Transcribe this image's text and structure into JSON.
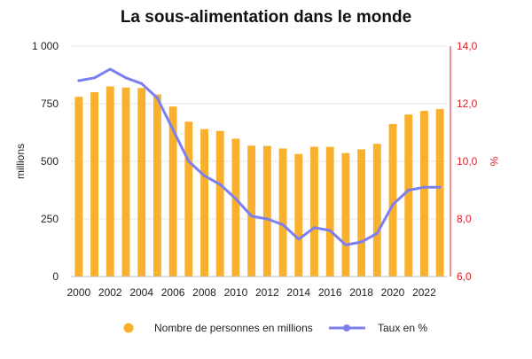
{
  "chart_data": {
    "type": "bar",
    "title": "La sous-alimentation dans le monde",
    "ylabel_left": "millions",
    "ylabel_right": "%",
    "ylim_left": [
      0,
      1000
    ],
    "ylim_right": [
      6,
      14
    ],
    "yticks_left": [
      "0",
      "250",
      "500",
      "750",
      "1 000"
    ],
    "yticks_left_values": [
      0,
      250,
      500,
      750,
      1000
    ],
    "yticks_right": [
      "6,0",
      "8,0",
      "10,0",
      "12,0",
      "14,0"
    ],
    "yticks_right_values": [
      6,
      8,
      10,
      12,
      14
    ],
    "x_tick_labels": [
      "2000",
      "2002",
      "2004",
      "2006",
      "2008",
      "2010",
      "2012",
      "2014",
      "2016",
      "2018",
      "2020",
      "2022"
    ],
    "categories": [
      2000,
      2001,
      2002,
      2003,
      2004,
      2005,
      2006,
      2007,
      2008,
      2009,
      2010,
      2011,
      2012,
      2013,
      2014,
      2015,
      2016,
      2017,
      2018,
      2019,
      2020,
      2021,
      2022,
      2023
    ],
    "grid": true,
    "legend_position": "bottom",
    "series": [
      {
        "name": "Nombre de personnes en millions",
        "type": "bar",
        "axis": "left",
        "color": "#f9b02d",
        "values": [
          780,
          800,
          825,
          820,
          818,
          790,
          738,
          672,
          640,
          632,
          598,
          568,
          567,
          556,
          532,
          563,
          563,
          536,
          552,
          576,
          662,
          703,
          719,
          727
        ]
      },
      {
        "name": "Taux en %",
        "type": "line",
        "axis": "right",
        "color": "#7b7ff0",
        "values": [
          12.8,
          12.9,
          13.2,
          12.9,
          12.7,
          12.2,
          11.1,
          10.0,
          9.5,
          9.2,
          8.7,
          8.1,
          8.0,
          7.8,
          7.3,
          7.7,
          7.6,
          7.1,
          7.2,
          7.5,
          8.5,
          9.0,
          9.1,
          9.1
        ]
      }
    ]
  }
}
